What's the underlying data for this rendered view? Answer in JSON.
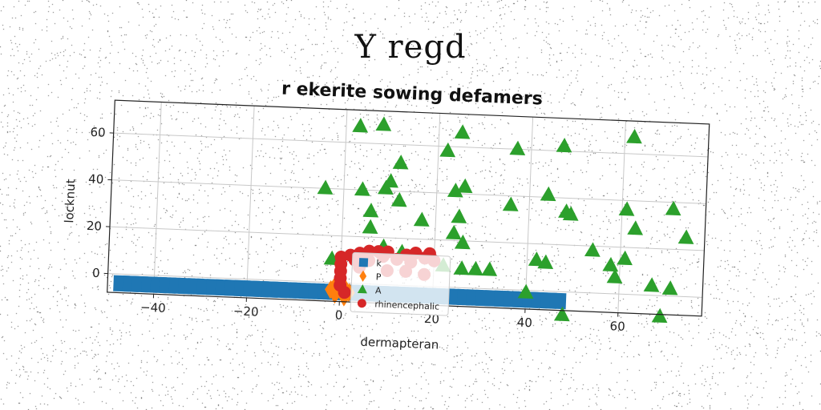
{
  "figure": {
    "suptitle": "Y regd"
  },
  "chart_data": {
    "type": "scatter",
    "title": "r ekerite sowing defamers",
    "xlabel": "dermapteran",
    "ylabel": "locknut",
    "xlim": [
      -50,
      78
    ],
    "ylim": [
      -8,
      74
    ],
    "xticks": [
      -40,
      -20,
      0,
      20,
      40,
      60
    ],
    "xtick_labels": [
      "−40",
      "−20",
      "0",
      "20",
      "40",
      "60"
    ],
    "yticks": [
      0,
      20,
      40,
      60
    ],
    "ytick_labels": [
      "0",
      "20",
      "40",
      "60"
    ],
    "grid": true,
    "legend_position": "lower center",
    "series": [
      {
        "name": "k",
        "marker": "square",
        "color": "#1f77b4",
        "points": [
          [
            -47,
            -4
          ],
          [
            -45,
            -4
          ],
          [
            -43,
            -4
          ],
          [
            -41,
            -4
          ],
          [
            -39,
            -4
          ],
          [
            -37,
            -4
          ],
          [
            -35,
            -4
          ],
          [
            -33,
            -4
          ],
          [
            -31,
            -4
          ],
          [
            -29,
            -4
          ],
          [
            -27,
            -4
          ],
          [
            -25,
            -4
          ],
          [
            -23,
            -4
          ],
          [
            -21,
            -4
          ],
          [
            -19,
            -4
          ],
          [
            -17,
            -4
          ],
          [
            -15,
            -4
          ],
          [
            -13,
            -4
          ],
          [
            -11,
            -4
          ],
          [
            -9,
            -4
          ],
          [
            -7,
            -4
          ],
          [
            -5,
            -4
          ],
          [
            -3,
            -4
          ],
          [
            -1,
            -4
          ],
          [
            1,
            -4
          ],
          [
            3,
            -4
          ],
          [
            5,
            -4
          ],
          [
            7,
            -4
          ],
          [
            9,
            -4
          ],
          [
            11,
            -4
          ],
          [
            13,
            -4
          ],
          [
            15,
            -4
          ],
          [
            17,
            -4
          ],
          [
            19,
            -4
          ],
          [
            21,
            -4
          ],
          [
            23,
            -4
          ],
          [
            25,
            -4
          ],
          [
            27,
            -4
          ],
          [
            29,
            -4
          ],
          [
            31,
            -4
          ],
          [
            33,
            -4
          ],
          [
            35,
            -4
          ],
          [
            37,
            -4
          ],
          [
            39,
            -4
          ],
          [
            41,
            -4
          ],
          [
            43,
            -4
          ],
          [
            45,
            -4
          ],
          [
            47,
            -4
          ]
        ]
      },
      {
        "name": "P",
        "marker": "diamond",
        "color": "#ff7f0e",
        "points": [
          [
            -2,
            -3
          ],
          [
            -1,
            -5
          ],
          [
            0,
            -2
          ],
          [
            1,
            -6
          ],
          [
            2,
            -4
          ],
          [
            -1,
            -1
          ],
          [
            1,
            -2
          ]
        ]
      },
      {
        "name": "A",
        "marker": "triangle",
        "color": "#2ca02c",
        "points": [
          [
            3,
            67
          ],
          [
            8,
            68
          ],
          [
            25,
            66
          ],
          [
            62,
            67
          ],
          [
            22,
            58
          ],
          [
            37,
            60
          ],
          [
            47,
            62
          ],
          [
            12,
            52
          ],
          [
            -4,
            40
          ],
          [
            4,
            40
          ],
          [
            9,
            41
          ],
          [
            10,
            44
          ],
          [
            24,
            41
          ],
          [
            26,
            43
          ],
          [
            44,
            41
          ],
          [
            61,
            36
          ],
          [
            71,
            37
          ],
          [
            6,
            31
          ],
          [
            12,
            36
          ],
          [
            17,
            28
          ],
          [
            25,
            30
          ],
          [
            36,
            36
          ],
          [
            48,
            34
          ],
          [
            49,
            33
          ],
          [
            63,
            28
          ],
          [
            74,
            25
          ],
          [
            6,
            24
          ],
          [
            24,
            23
          ],
          [
            26,
            19
          ],
          [
            9,
            16
          ],
          [
            13,
            14
          ],
          [
            54,
            18
          ],
          [
            61,
            15
          ],
          [
            -2,
            10
          ],
          [
            22,
            9
          ],
          [
            26,
            8
          ],
          [
            29,
            8
          ],
          [
            32,
            8
          ],
          [
            42,
            13
          ],
          [
            44,
            12
          ],
          [
            58,
            12
          ],
          [
            59,
            7
          ],
          [
            67,
            4
          ],
          [
            71,
            3
          ],
          [
            40,
            -1
          ],
          [
            48,
            -10
          ],
          [
            69,
            -9
          ]
        ]
      },
      {
        "name": "rhinencephalic",
        "marker": "circle",
        "color": "#d62728",
        "points": [
          [
            0,
            11
          ],
          [
            0,
            8
          ],
          [
            0,
            5
          ],
          [
            0,
            2
          ],
          [
            0,
            -1
          ],
          [
            1,
            -4
          ],
          [
            2,
            12
          ],
          [
            3,
            10
          ],
          [
            4,
            13
          ],
          [
            4,
            7
          ],
          [
            6,
            14
          ],
          [
            6,
            10
          ],
          [
            8,
            14
          ],
          [
            9,
            12
          ],
          [
            10,
            14
          ],
          [
            12,
            11
          ],
          [
            14,
            13
          ],
          [
            15,
            10
          ],
          [
            16,
            14
          ],
          [
            18,
            12
          ],
          [
            19,
            14
          ],
          [
            20,
            11
          ],
          [
            10,
            6
          ],
          [
            14,
            6
          ],
          [
            18,
            5
          ]
        ]
      }
    ]
  }
}
